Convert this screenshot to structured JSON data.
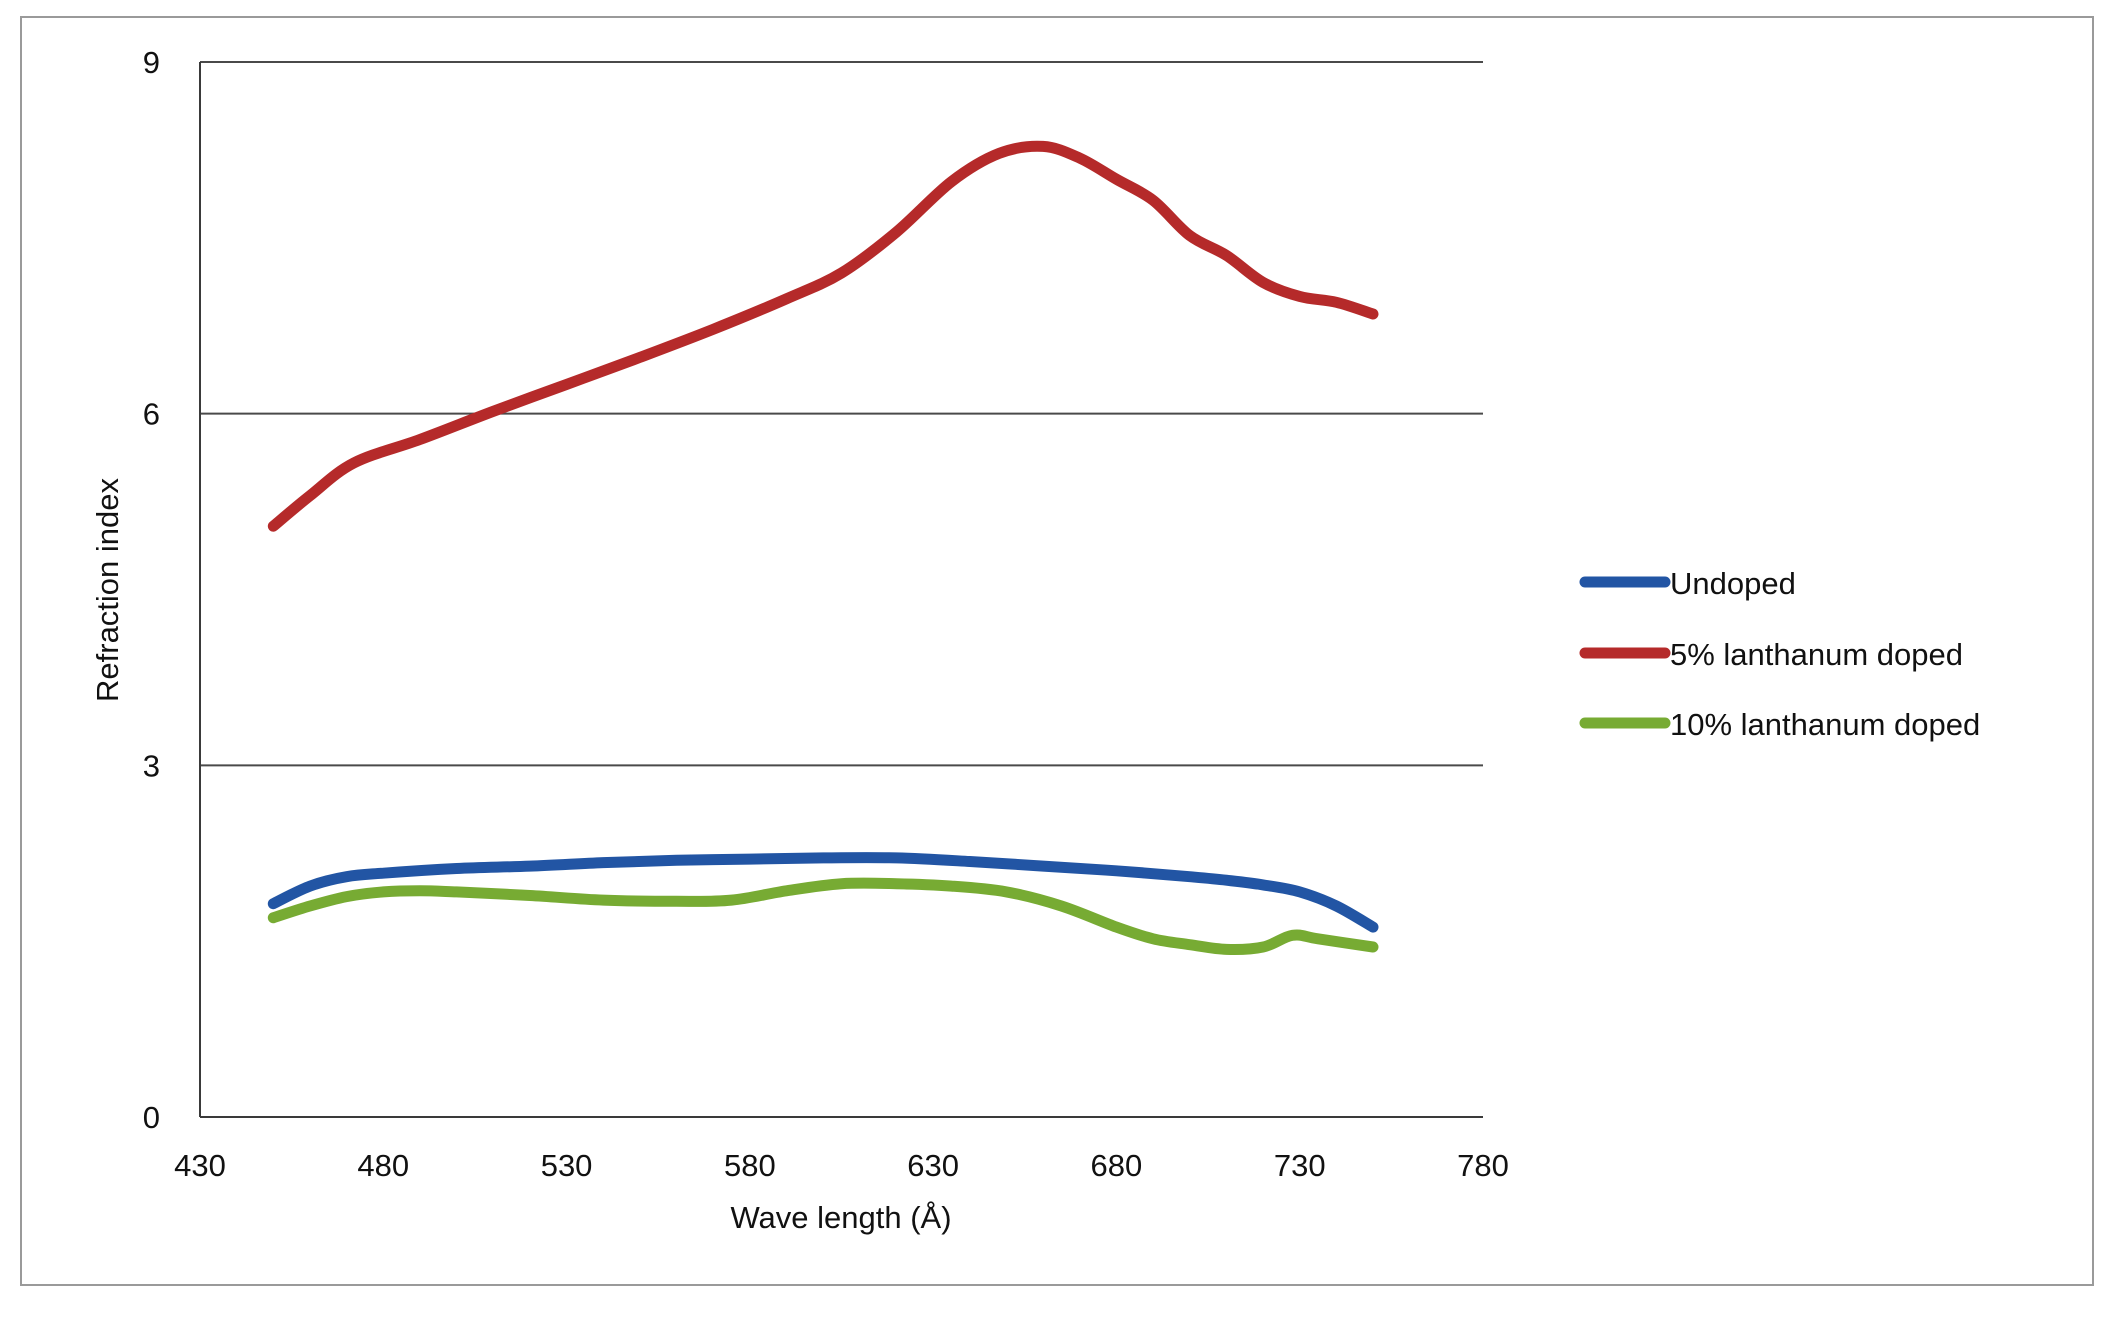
{
  "chart_data": {
    "type": "line",
    "title": "",
    "xlabel": "Wave length (Å)",
    "ylabel": "Refraction index",
    "xlim": [
      430,
      780
    ],
    "ylim": [
      0,
      9
    ],
    "xticks": [
      430,
      480,
      530,
      580,
      630,
      680,
      730,
      780
    ],
    "yticks": [
      0,
      3,
      6,
      9
    ],
    "grid": "horizontal",
    "legend_position": "right",
    "series": [
      {
        "name": "Undoped",
        "color": "#2255a4",
        "x": [
          450,
          460,
          470,
          480,
          500,
          520,
          540,
          560,
          580,
          600,
          620,
          640,
          660,
          680,
          700,
          710,
          720,
          730,
          740,
          750
        ],
        "y": [
          1.82,
          1.97,
          2.05,
          2.08,
          2.12,
          2.14,
          2.17,
          2.19,
          2.2,
          2.21,
          2.21,
          2.18,
          2.14,
          2.1,
          2.05,
          2.02,
          1.98,
          1.92,
          1.8,
          1.62
        ]
      },
      {
        "name": "5% lanthanum doped",
        "color": "#b52a2a",
        "x": [
          450,
          460,
          472,
          490,
          510,
          530,
          550,
          570,
          590,
          605,
          620,
          635,
          648,
          660,
          670,
          680,
          690,
          700,
          710,
          720,
          730,
          740,
          750
        ],
        "y": [
          5.04,
          5.3,
          5.58,
          5.78,
          6.02,
          6.25,
          6.48,
          6.72,
          6.98,
          7.2,
          7.55,
          7.98,
          8.22,
          8.28,
          8.18,
          8.0,
          7.82,
          7.52,
          7.35,
          7.12,
          7.0,
          6.95,
          6.85
        ]
      },
      {
        "name": "10% lanthanum doped",
        "color": "#77ab33",
        "x": [
          450,
          460,
          470,
          480,
          490,
          500,
          520,
          540,
          560,
          575,
          590,
          605,
          620,
          635,
          650,
          665,
          680,
          690,
          700,
          710,
          720,
          728,
          735,
          750
        ],
        "y": [
          1.7,
          1.8,
          1.88,
          1.92,
          1.93,
          1.92,
          1.89,
          1.85,
          1.84,
          1.85,
          1.93,
          1.99,
          1.99,
          1.97,
          1.92,
          1.8,
          1.62,
          1.52,
          1.47,
          1.43,
          1.45,
          1.55,
          1.52,
          1.45
        ]
      }
    ]
  }
}
